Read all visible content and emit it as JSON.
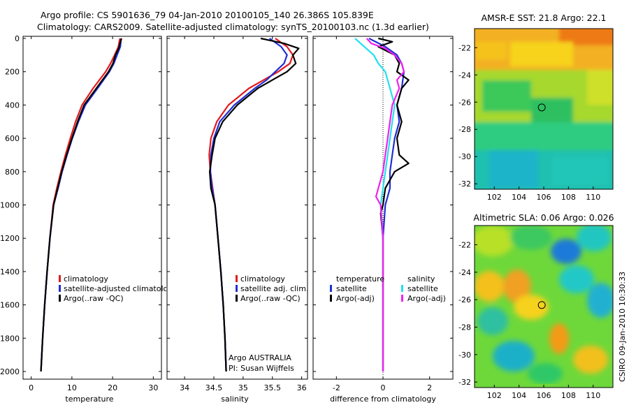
{
  "header": {
    "title_line1": "Argo profile: CS 5901636_79 04-Jan-2010 20100105_140 26.386S 105.839E",
    "title_line2": "Climatology: CARS2009. Satellite-adjusted climatology: synTS_20100103.nc (1.3d earlier)"
  },
  "footer": {
    "credit": "CSIRO 09-Jan-2010 10:30:33",
    "agency": "Argo AUSTRALIA",
    "pi": "PI: Susan Wijffels"
  },
  "colors": {
    "climatology": "#e31a1c",
    "satellite": "#1f2fd6",
    "argo": "#000000",
    "sal_satellite": "#22e0ee",
    "sal_argo": "#ee22ee"
  },
  "chart_data": [
    {
      "id": "temperature",
      "type": "line",
      "xlabel": "temperature",
      "xlim": [
        -2,
        32
      ],
      "ylim": [
        2000,
        0
      ],
      "xticks": [
        "0",
        "10",
        "20",
        "30"
      ],
      "yticks": [
        "0",
        "200",
        "400",
        "600",
        "800",
        "1000",
        "1200",
        "1400",
        "1600",
        "1800",
        "2000"
      ],
      "legend": [
        "climatology",
        "satellite-adjusted climatology",
        "Argo(..raw -QC)"
      ],
      "series": [
        {
          "name": "climatology",
          "color": "#e31a1c",
          "depth": [
            0,
            50,
            100,
            150,
            200,
            300,
            400,
            500,
            600,
            700,
            800,
            900,
            1000,
            1200,
            1400,
            1600,
            1800,
            2000
          ],
          "values": [
            21.8,
            21.4,
            20.5,
            19.5,
            18.3,
            15.2,
            12.5,
            10.9,
            9.6,
            8.4,
            7.3,
            6.3,
            5.4,
            4.6,
            3.9,
            3.3,
            2.8,
            2.4
          ]
        },
        {
          "name": "satellite-adjusted climatology",
          "color": "#1f2fd6",
          "depth": [
            0,
            50,
            100,
            150,
            200,
            300,
            400,
            500,
            600,
            700,
            800,
            900,
            1000,
            1200,
            1400,
            1600,
            1800,
            2000
          ],
          "values": [
            22.1,
            21.9,
            21.1,
            20.3,
            19.2,
            16.3,
            13.3,
            11.6,
            10.1,
            8.8,
            7.6,
            6.6,
            5.5,
            4.6,
            3.9,
            3.3,
            2.8,
            2.4
          ]
        },
        {
          "name": "Argo(..raw -QC)",
          "color": "#000000",
          "depth": [
            0,
            30,
            60,
            100,
            150,
            200,
            300,
            400,
            500,
            600,
            700,
            800,
            900,
            1000,
            1200,
            1400,
            1600,
            1800,
            2000
          ],
          "values": [
            22.2,
            21.8,
            21.5,
            20.7,
            20.1,
            19.0,
            16.0,
            13.0,
            11.4,
            10.0,
            8.7,
            7.5,
            6.5,
            5.5,
            4.6,
            3.9,
            3.3,
            2.8,
            2.4
          ]
        }
      ]
    },
    {
      "id": "salinity",
      "type": "line",
      "xlabel": "salinity",
      "xlim": [
        33.7,
        36.1
      ],
      "ylim": [
        2000,
        0
      ],
      "xticks": [
        "34",
        "34.5",
        "35",
        "35.5",
        "36"
      ],
      "legend": [
        "climatology",
        "satellite adj. clim.",
        "Argo(..raw -QC)"
      ],
      "series": [
        {
          "name": "climatology",
          "color": "#e31a1c",
          "depth": [
            0,
            50,
            100,
            150,
            200,
            250,
            300,
            400,
            500,
            600,
            700,
            800,
            900,
            1000,
            1200,
            1400,
            1600,
            1800,
            2000
          ],
          "values": [
            35.55,
            35.75,
            35.85,
            35.8,
            35.6,
            35.35,
            35.1,
            34.75,
            34.55,
            34.45,
            34.42,
            34.44,
            34.48,
            34.52,
            34.57,
            34.62,
            34.66,
            34.69,
            34.71
          ]
        },
        {
          "name": "satellite adj. clim.",
          "color": "#1f2fd6",
          "depth": [
            0,
            50,
            100,
            150,
            200,
            250,
            300,
            400,
            500,
            600,
            700,
            800,
            900,
            1000,
            1200,
            1400,
            1600,
            1800,
            2000
          ],
          "values": [
            35.45,
            35.65,
            35.75,
            35.7,
            35.55,
            35.4,
            35.2,
            34.85,
            34.6,
            34.5,
            34.45,
            34.44,
            34.47,
            34.52,
            34.57,
            34.62,
            34.66,
            34.69,
            34.71
          ]
        },
        {
          "name": "Argo(..raw -QC)",
          "color": "#000000",
          "depth": [
            0,
            30,
            60,
            100,
            150,
            200,
            250,
            300,
            400,
            500,
            600,
            700,
            800,
            900,
            1000,
            1200,
            1400,
            1600,
            1800,
            2000
          ],
          "values": [
            35.3,
            35.7,
            35.95,
            35.85,
            35.9,
            35.75,
            35.5,
            35.25,
            34.9,
            34.65,
            34.52,
            34.47,
            34.43,
            34.45,
            34.52,
            34.57,
            34.62,
            34.66,
            34.69,
            34.71
          ]
        }
      ]
    },
    {
      "id": "difference",
      "type": "line",
      "xlabel": "difference from climatology",
      "xlim": [
        -3,
        3
      ],
      "ylim": [
        2000,
        0
      ],
      "xticks": [
        "-2",
        "0",
        "2"
      ],
      "legend_temperature": {
        "heading": "temperature",
        "items": [
          "satellite",
          "Argo(-adj)"
        ]
      },
      "legend_salinity": {
        "heading": "salinity",
        "items": [
          "satellite",
          "Argo(-adj)"
        ]
      },
      "series": [
        {
          "name": "temperature satellite",
          "color": "#1f2fd6",
          "depth": [
            0,
            50,
            100,
            150,
            200,
            300,
            400,
            500,
            600,
            700,
            800,
            900,
            1000,
            1200,
            1600,
            2000
          ],
          "values": [
            -0.6,
            0.1,
            0.6,
            0.8,
            0.9,
            0.8,
            0.6,
            0.7,
            0.5,
            0.4,
            0.3,
            0.3,
            0.1,
            0,
            0,
            0
          ]
        },
        {
          "name": "temperature Argo(-adj)",
          "color": "#000000",
          "depth": [
            0,
            20,
            50,
            100,
            150,
            200,
            250,
            300,
            400,
            500,
            600,
            700,
            750,
            800,
            900,
            1000,
            1050,
            1200,
            1600,
            2000
          ],
          "values": [
            -0.2,
            0.4,
            -0.2,
            0.5,
            0.7,
            0.6,
            1.1,
            0.8,
            0.6,
            0.8,
            0.6,
            0.7,
            1.1,
            0.5,
            0.1,
            0,
            -0.1,
            0,
            0,
            0
          ]
        },
        {
          "name": "salinity satellite",
          "color": "#22e0ee",
          "depth": [
            0,
            50,
            100,
            150,
            200,
            300,
            400,
            500,
            600,
            700,
            800,
            900,
            1000,
            1200,
            1600,
            2000
          ],
          "values": [
            -1.2,
            -0.8,
            -0.4,
            -0.2,
            0.1,
            0.3,
            0.5,
            0.4,
            0.3,
            0.2,
            0.1,
            0,
            -0.1,
            0,
            0,
            0
          ]
        },
        {
          "name": "salinity Argo(-adj)",
          "color": "#ee22ee",
          "depth": [
            0,
            30,
            60,
            100,
            150,
            200,
            250,
            300,
            400,
            500,
            600,
            700,
            800,
            900,
            950,
            1000,
            1200,
            1600,
            2000
          ],
          "values": [
            -0.7,
            -0.5,
            0.1,
            0.5,
            0.8,
            0.9,
            0.6,
            0.7,
            0.4,
            0.3,
            0.2,
            0.1,
            0,
            -0.2,
            -0.3,
            -0.1,
            0,
            0,
            0
          ]
        }
      ]
    },
    {
      "id": "sst_map",
      "type": "heatmap",
      "title": "AMSR-E SST: 21.8 Argo: 22.1",
      "xlim": [
        100.4,
        111.6
      ],
      "ylim": [
        -32.4,
        -20.6
      ],
      "xticks": [
        "102",
        "104",
        "106",
        "108",
        "110"
      ],
      "yticks": [
        "-22",
        "-24",
        "-26",
        "-28",
        "-30",
        "-32"
      ],
      "marker": {
        "lon": 105.84,
        "lat": -26.39
      }
    },
    {
      "id": "sla_map",
      "type": "heatmap",
      "title": "Altimetric SLA: 0.06 Argo: 0.026",
      "xlim": [
        100.4,
        111.6
      ],
      "ylim": [
        -32.4,
        -20.6
      ],
      "xticks": [
        "102",
        "104",
        "106",
        "108",
        "110"
      ],
      "yticks": [
        "-22",
        "-24",
        "-26",
        "-28",
        "-30",
        "-32"
      ],
      "marker": {
        "lon": 105.84,
        "lat": -26.39
      }
    }
  ]
}
